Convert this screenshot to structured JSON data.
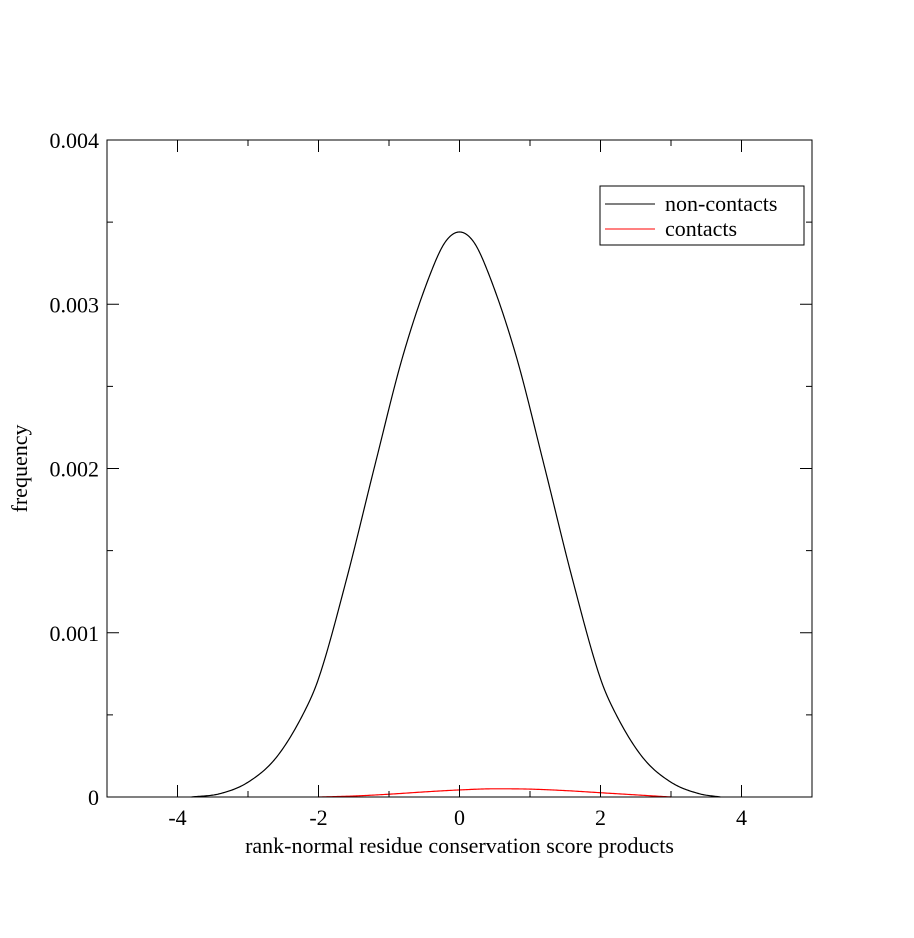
{
  "chart_data": {
    "type": "line",
    "title": "",
    "xlabel": "rank-normal residue conservation score products",
    "ylabel": "frequency",
    "xlim": [
      -5,
      5
    ],
    "ylim": [
      0,
      0.004
    ],
    "x_major_ticks": [
      -4,
      -2,
      0,
      2,
      4
    ],
    "x_tick_labels": [
      "-4",
      "-2",
      "0",
      "2",
      "4"
    ],
    "x_minor_ticks": [
      -3,
      -1,
      1,
      3
    ],
    "y_major_ticks": [
      0,
      0.001,
      0.002,
      0.003,
      0.004
    ],
    "y_tick_labels": [
      "0",
      "0.001",
      "0.002",
      "0.003",
      "0.004"
    ],
    "y_minor_ticks": [
      0.0005,
      0.0015,
      0.0025,
      0.0035
    ],
    "grid": false,
    "legend_position": "top-right",
    "series": [
      {
        "name": "non-contacts",
        "color": "#000000",
        "x": [
          -3.8,
          -3.4,
          -3.0,
          -2.6,
          -2.2,
          -2.0,
          -1.6,
          -1.2,
          -0.8,
          -0.4,
          -0.2,
          0.0,
          0.2,
          0.4,
          0.8,
          1.2,
          1.6,
          2.0,
          2.2,
          2.6,
          3.0,
          3.4,
          3.7
        ],
        "y": [
          0.0,
          2e-05,
          9e-05,
          0.00024,
          0.00052,
          0.00072,
          0.00133,
          0.00202,
          0.00269,
          0.0032,
          0.00338,
          0.00344,
          0.00338,
          0.0032,
          0.00269,
          0.00202,
          0.00133,
          0.00072,
          0.00052,
          0.00024,
          9e-05,
          2e-05,
          0.0
        ]
      },
      {
        "name": "contacts",
        "color": "#ff0000",
        "x": [
          -2.0,
          -1.5,
          -1.0,
          -0.5,
          0.0,
          0.5,
          1.0,
          1.5,
          2.0,
          2.5,
          3.0
        ],
        "y": [
          0.0,
          6e-06,
          1.7e-05,
          3.1e-05,
          4.3e-05,
          5e-05,
          4.8e-05,
          3.9e-05,
          2.6e-05,
          1.3e-05,
          0.0
        ]
      }
    ]
  }
}
